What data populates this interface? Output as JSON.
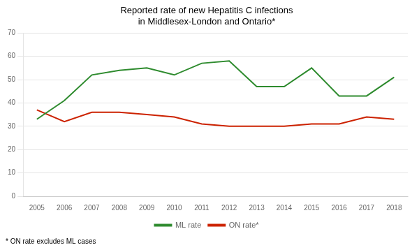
{
  "chart_data": {
    "type": "line",
    "title": "Reported rate of new Hepatitis C infections\nin Middlesex-London and Ontario*",
    "annotations": [
      "* ON rate excludes ML cases"
    ],
    "x": [
      2005,
      2006,
      2007,
      2008,
      2009,
      2010,
      2011,
      2012,
      2013,
      2014,
      2015,
      2016,
      2017,
      2018
    ],
    "series": [
      {
        "name": "ML rate",
        "color": "#2e8b2e",
        "values": [
          33,
          41,
          52,
          54,
          55,
          52,
          57,
          58,
          47,
          47,
          55,
          43,
          43,
          51
        ]
      },
      {
        "name": "ON rate*",
        "color": "#cc2200",
        "values": [
          37,
          32,
          36,
          36,
          35,
          34,
          31,
          30,
          30,
          30,
          31,
          31,
          34,
          33
        ]
      }
    ],
    "xlim": [
      2004.5,
      2018.5
    ],
    "xticks": [
      2005,
      2006,
      2007,
      2008,
      2009,
      2010,
      2011,
      2012,
      2013,
      2014,
      2015,
      2016,
      2017,
      2018
    ],
    "ylim": [
      0,
      70
    ],
    "yticks": [
      0,
      10,
      20,
      30,
      40,
      50,
      60,
      70
    ],
    "grid": "y",
    "legend": "bottom"
  }
}
